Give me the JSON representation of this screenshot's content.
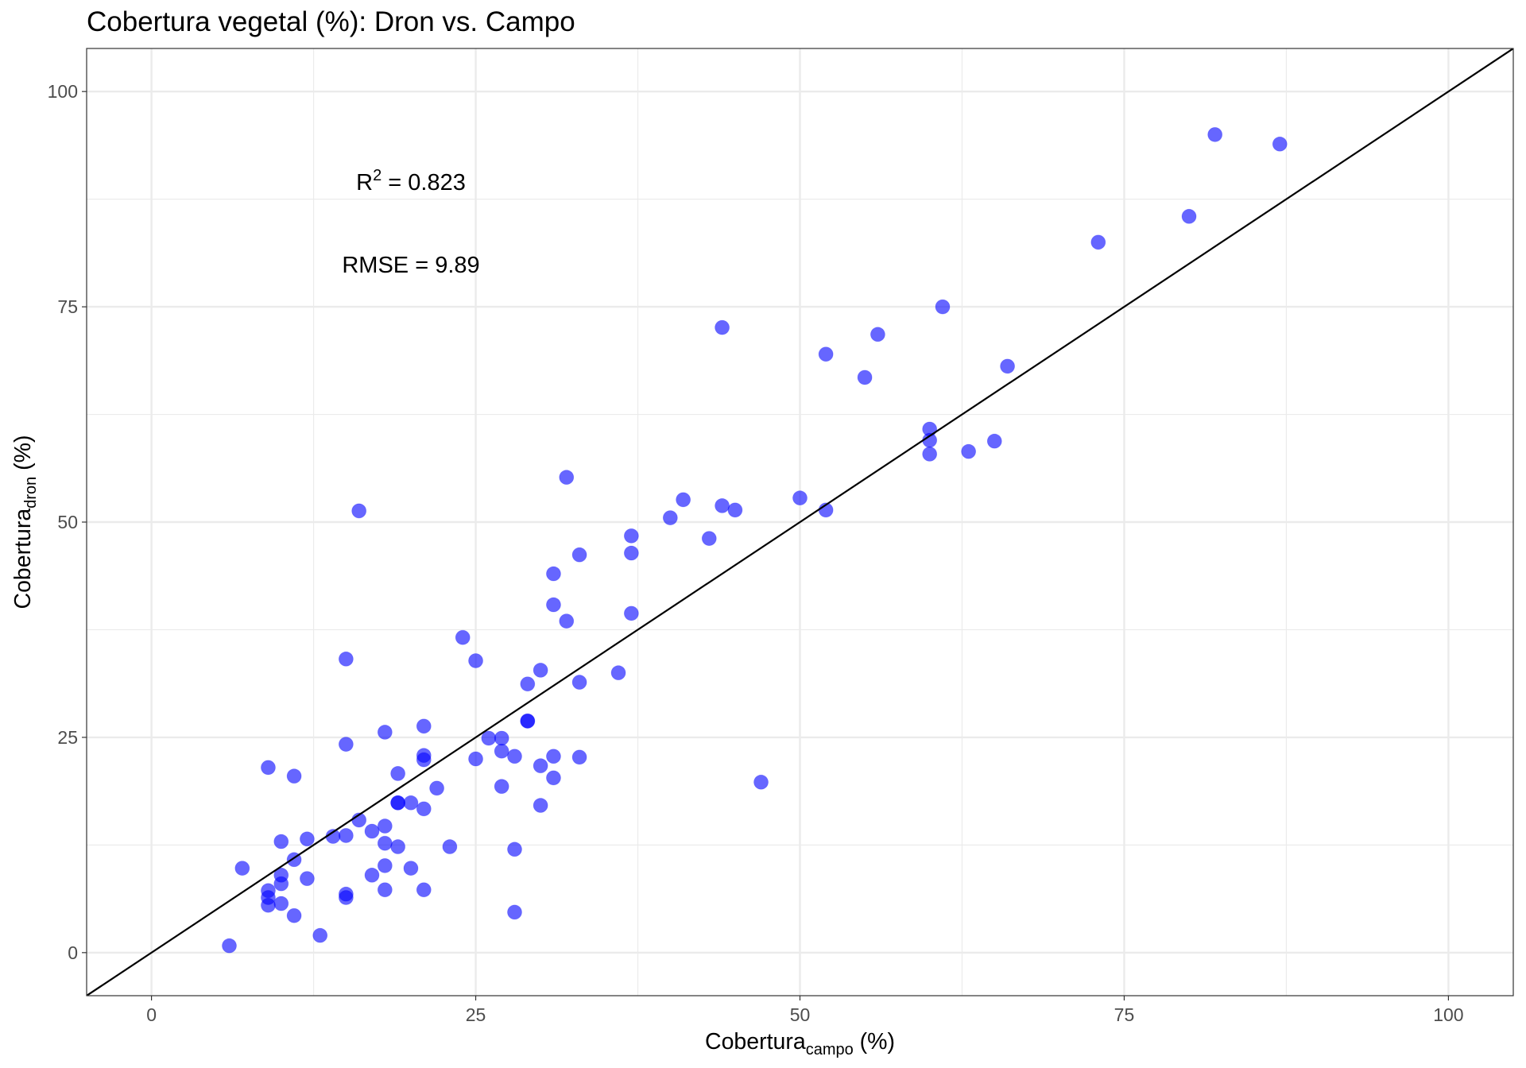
{
  "chart_data": {
    "type": "scatter",
    "title": "Cobertura vegetal (%): Dron vs. Campo",
    "xlabel": {
      "main": "Cobertura",
      "sub": "campo",
      "suffix": " (%)"
    },
    "ylabel": {
      "main": "Cobertura",
      "sub": "dron",
      "suffix": " (%)"
    },
    "xlim": [
      -5,
      105
    ],
    "ylim": [
      -5,
      105
    ],
    "x_ticks": [
      0,
      25,
      50,
      75,
      100
    ],
    "y_ticks": [
      0,
      25,
      50,
      75,
      100
    ],
    "grid": true,
    "point_color": "#0000FF",
    "point_opacity": 0.6,
    "reference_line": {
      "slope": 1,
      "intercept": 0,
      "color": "#000000"
    },
    "annotations": [
      {
        "base": "R",
        "sup": "2",
        "rest": " = 0.823"
      },
      {
        "text": "RMSE = 9.89"
      }
    ],
    "x": [
      82,
      87,
      80,
      73,
      61,
      44,
      56,
      52,
      55,
      66,
      60,
      60,
      65,
      63,
      60,
      32,
      16,
      50,
      52,
      44,
      45,
      41,
      40,
      37,
      43,
      37,
      33,
      31,
      31,
      37,
      32,
      24,
      15,
      25,
      30,
      36,
      29,
      33,
      29,
      29,
      21,
      18,
      26,
      27,
      15,
      27,
      21,
      31,
      33,
      28,
      21,
      25,
      30,
      9,
      11,
      19,
      31,
      47,
      27,
      22,
      19,
      19,
      20,
      30,
      21,
      16,
      18,
      17,
      14,
      15,
      12,
      10,
      18,
      19,
      23,
      28,
      11,
      7,
      18,
      20,
      17,
      10,
      12,
      10,
      9,
      18,
      21,
      15,
      15,
      9,
      9,
      10,
      11,
      28,
      13,
      6
    ],
    "y": [
      95.0,
      93.9,
      85.5,
      82.5,
      75.0,
      72.6,
      71.8,
      69.5,
      66.8,
      68.1,
      60.8,
      59.5,
      59.4,
      58.2,
      57.9,
      55.2,
      51.3,
      52.8,
      51.4,
      51.9,
      51.4,
      52.6,
      50.5,
      48.4,
      48.1,
      46.4,
      46.2,
      44.0,
      40.4,
      39.4,
      38.5,
      36.6,
      34.1,
      33.9,
      32.8,
      32.5,
      31.2,
      31.4,
      26.9,
      26.9,
      26.3,
      25.6,
      24.9,
      24.9,
      24.2,
      23.4,
      22.9,
      22.8,
      22.7,
      22.8,
      22.4,
      22.5,
      21.7,
      21.5,
      20.5,
      20.8,
      20.3,
      19.8,
      19.3,
      19.1,
      17.4,
      17.4,
      17.4,
      17.1,
      16.7,
      15.4,
      14.7,
      14.1,
      13.5,
      13.6,
      13.2,
      12.9,
      12.7,
      12.3,
      12.3,
      12.0,
      10.8,
      9.8,
      10.1,
      9.8,
      9.0,
      9.0,
      8.6,
      8.0,
      7.2,
      7.3,
      7.3,
      6.8,
      6.4,
      6.4,
      5.5,
      5.7,
      4.3,
      4.7,
      2.0,
      0.8
    ]
  }
}
